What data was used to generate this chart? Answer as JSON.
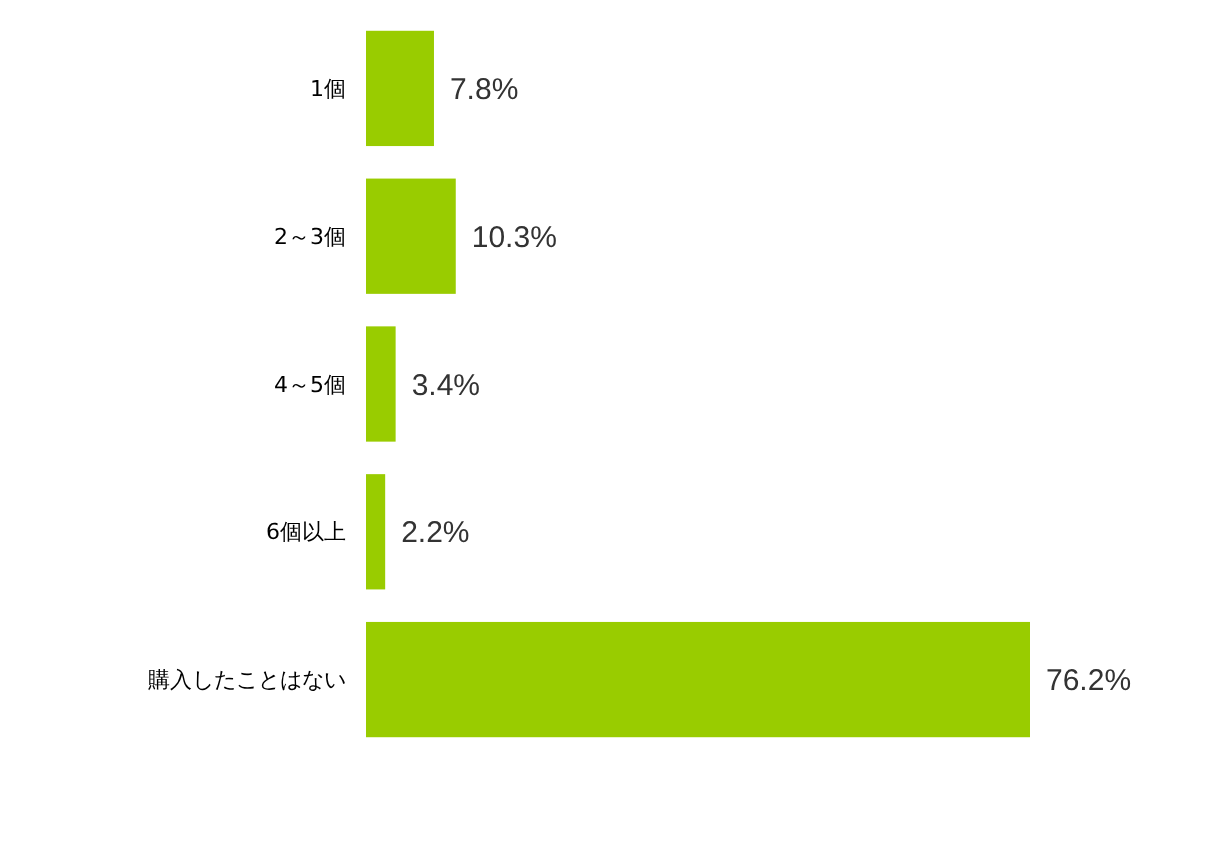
{
  "chart_data": {
    "type": "bar",
    "orientation": "horizontal",
    "categories": [
      "1個",
      "2～3個",
      "4～5個",
      "6個以上",
      "購入したことはない"
    ],
    "values": [
      7.8,
      10.3,
      3.4,
      2.2,
      76.2
    ],
    "value_labels": [
      "7.8%",
      "10.3%",
      "3.4%",
      "2.2%",
      "76.2%"
    ],
    "color": "#99cc00"
  }
}
